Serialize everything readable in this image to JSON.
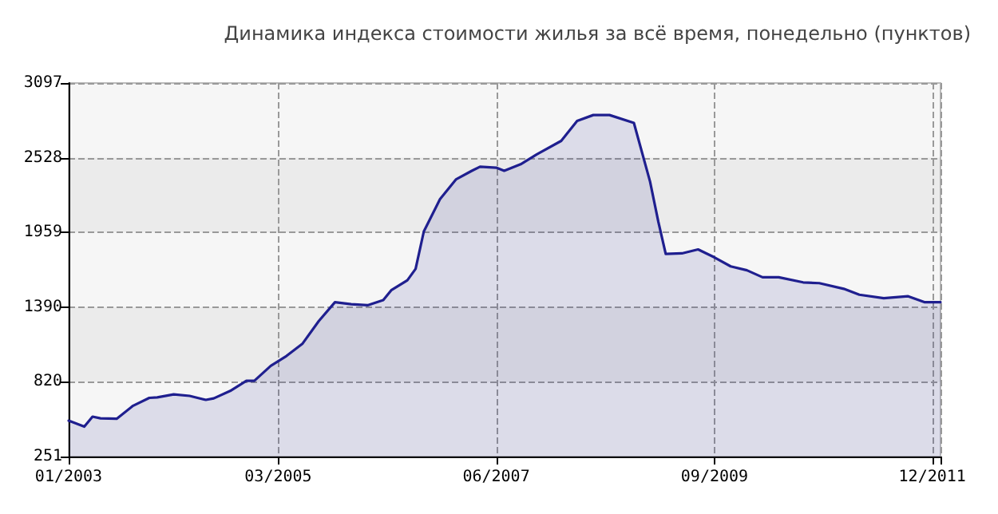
{
  "chart_data": {
    "type": "area",
    "title": "Динамика индекса стоимости жилья за всё время, понедельно (пунктов)",
    "x": [
      "2003-01",
      "2003-03",
      "2003-04",
      "2003-05",
      "2003-07",
      "2003-09",
      "2003-11",
      "2003-12",
      "2004-02",
      "2004-04",
      "2004-06",
      "2004-07",
      "2004-09",
      "2004-11",
      "2004-12",
      "2005-02",
      "2005-04",
      "2005-06",
      "2005-08",
      "2005-10",
      "2005-12",
      "2006-02",
      "2006-04",
      "2006-05",
      "2006-07",
      "2006-08",
      "2006-09",
      "2006-11",
      "2007-01",
      "2007-03",
      "2007-04",
      "2007-06",
      "2007-07",
      "2007-09",
      "2007-11",
      "2008-02",
      "2008-04",
      "2008-06",
      "2008-08",
      "2008-11",
      "2009-01",
      "2009-02",
      "2009-03",
      "2009-05",
      "2009-07",
      "2009-09",
      "2009-11",
      "2010-01",
      "2010-03",
      "2010-05",
      "2010-08",
      "2010-10",
      "2011-01",
      "2011-03",
      "2011-06",
      "2011-09",
      "2011-11",
      "2012-01"
    ],
    "series": [
      {
        "color": "#1f1f8f",
        "values": [
          524,
          479,
          555,
          542,
          539,
          638,
          698,
          702,
          725,
          713,
          683,
          694,
          751,
          828,
          828,
          942,
          1017,
          1112,
          1283,
          1427,
          1412,
          1404,
          1443,
          1518,
          1594,
          1681,
          1966,
          2212,
          2364,
          2428,
          2459,
          2452,
          2428,
          2478,
          2554,
          2656,
          2808,
          2853,
          2853,
          2793,
          2345,
          2041,
          1795,
          1799,
          1829,
          1768,
          1700,
          1670,
          1617,
          1617,
          1578,
          1572,
          1529,
          1484,
          1457,
          1472,
          1427,
          1427
        ]
      }
    ],
    "xlim": [
      "2003-01",
      "2012-01"
    ],
    "xticks": [
      {
        "value": "2003-01",
        "label": "01/2003"
      },
      {
        "value": "2005-03",
        "label": "03/2005"
      },
      {
        "value": "2007-06",
        "label": "06/2007"
      },
      {
        "value": "2009-09",
        "label": "09/2009"
      },
      {
        "value": "2011-12",
        "label": "12/2011"
      },
      {
        "value": "2012-01",
        "label": null
      }
    ],
    "ylim": [
      251,
      3097
    ],
    "yticks": [
      251,
      820,
      1390,
      1959,
      2528,
      3097
    ],
    "grid": true,
    "line_style": "solid",
    "marker": "none"
  }
}
